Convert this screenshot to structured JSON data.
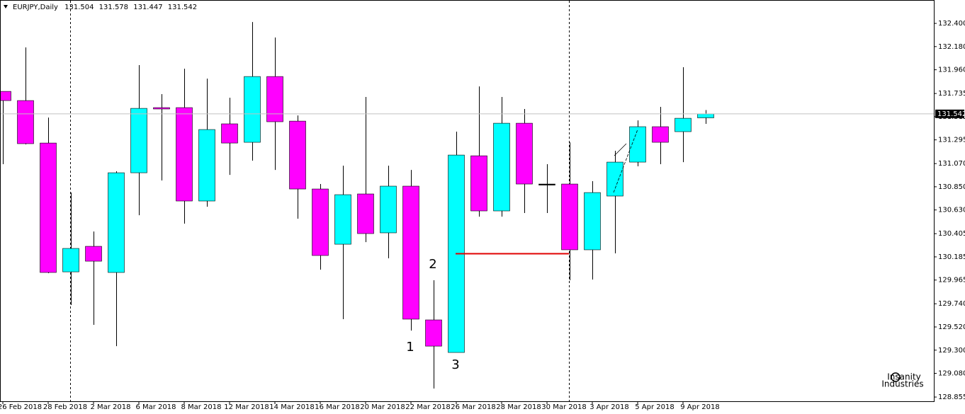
{
  "chart_data": {
    "type": "candlestick",
    "title": "EURJPY,Daily",
    "categories": [
      null,
      "26 Feb 2018",
      null,
      "28 Feb 2018",
      null,
      "2 Mar 2018",
      null,
      "6 Mar 2018",
      null,
      "8 Mar 2018",
      null,
      "12 Mar 2018",
      null,
      "14 Mar 2018",
      null,
      "16 Mar 2018",
      null,
      "20 Mar 2018",
      null,
      "22 Mar 2018",
      null,
      "26 Mar 2018",
      null,
      "28 Mar 2018",
      null,
      "30 Mar 2018",
      null,
      "3 Apr 2018",
      null,
      "5 Apr 2018",
      null,
      "9 Apr 2018"
    ],
    "open": [
      131.755,
      131.668,
      131.265,
      130.043,
      130.285,
      130.037,
      130.983,
      131.601,
      131.601,
      130.715,
      131.447,
      131.272,
      131.896,
      131.473,
      130.829,
      130.305,
      130.782,
      130.413,
      130.856,
      129.587,
      129.278,
      131.144,
      130.621,
      131.453,
      130.876,
      130.876,
      130.252,
      130.762,
      131.084,
      131.42,
      131.373,
      131.504
    ],
    "high": [
      131.755,
      132.172,
      131.507,
      130.795,
      130.426,
      130.997,
      132.004,
      131.729,
      131.97,
      131.876,
      131.695,
      132.413,
      132.266,
      131.527,
      130.876,
      131.05,
      131.702,
      131.05,
      131.01,
      129.963,
      131.373,
      131.802,
      131.702,
      131.588,
      131.064,
      131.272,
      130.903,
      131.191,
      131.48,
      131.608,
      131.984,
      131.578
    ],
    "low": [
      131.064,
      131.252,
      130.03,
      129.728,
      129.54,
      129.338,
      130.58,
      130.91,
      130.5,
      130.661,
      130.963,
      131.098,
      131.01,
      130.547,
      130.064,
      129.594,
      130.325,
      130.171,
      129.486,
      128.936,
      129.278,
      130.567,
      130.567,
      130.601,
      130.601,
      129.963,
      129.97,
      130.218,
      131.044,
      131.064,
      131.084,
      131.447
    ],
    "close": [
      131.668,
      131.259,
      130.037,
      130.265,
      130.144,
      130.983,
      131.594,
      131.588,
      130.715,
      131.393,
      131.265,
      131.896,
      131.467,
      130.829,
      130.198,
      130.775,
      130.406,
      130.856,
      129.594,
      129.338,
      131.151,
      130.621,
      131.453,
      130.876,
      130.876,
      130.252,
      130.795,
      131.084,
      131.42,
      131.272,
      131.5,
      131.542
    ],
    "up_color": "#00ffff",
    "down_color": "#ff00ff",
    "ylim": [
      128.815,
      132.622
    ],
    "yticks": [
      {
        "value": 132.4,
        "label": "132.400"
      },
      {
        "value": 132.18,
        "label": "132.180"
      },
      {
        "value": 131.96,
        "label": "131.960"
      },
      {
        "value": 131.735,
        "label": "131.735"
      },
      {
        "value": 131.515,
        "label": "131.515"
      },
      {
        "value": 131.295,
        "label": "131.295"
      },
      {
        "value": 131.07,
        "label": "131.070"
      },
      {
        "value": 130.85,
        "label": "130.850"
      },
      {
        "value": 130.63,
        "label": "130.630"
      },
      {
        "value": 130.405,
        "label": "130.405"
      },
      {
        "value": 130.185,
        "label": "130.185"
      },
      {
        "value": 129.965,
        "label": "129.965"
      },
      {
        "value": 129.74,
        "label": "129.740"
      },
      {
        "value": 129.52,
        "label": "129.520"
      },
      {
        "value": 129.3,
        "label": "129.300"
      },
      {
        "value": 129.08,
        "label": "129.080"
      },
      {
        "value": 128.855,
        "label": "128.855"
      }
    ],
    "annotations": [
      "1",
      "2",
      "3"
    ]
  },
  "watermark": [
    "Insanity",
    "Industries"
  ]
}
